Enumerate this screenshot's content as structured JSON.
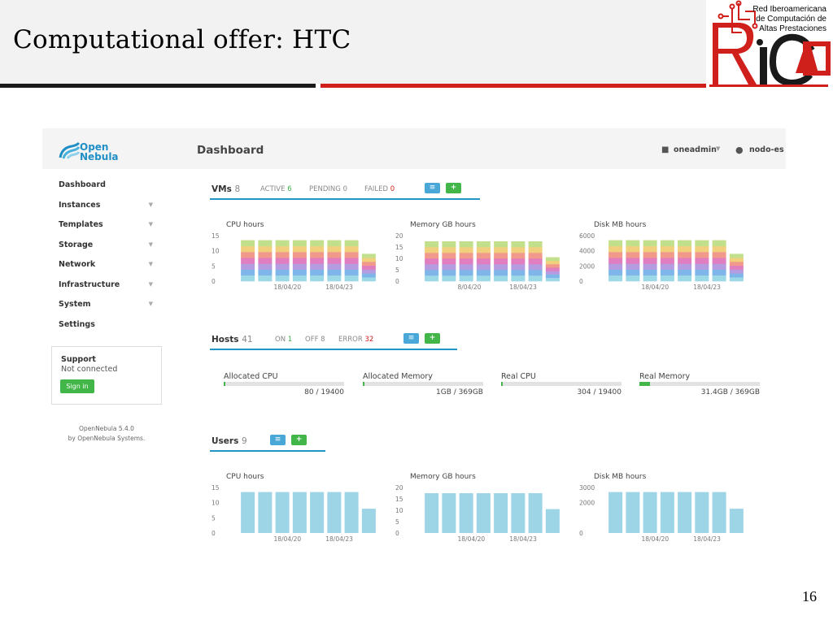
{
  "slide": {
    "title": "Computational offer: HTC",
    "page_number": "16",
    "logo": {
      "org_line1": "Red Iberoamericana",
      "org_line2": "de Computación de",
      "org_line3": "Altas Prestaciones",
      "wordmark": "RICAP"
    }
  },
  "colors": {
    "accent_blue": "#2196c6",
    "success_green": "#43b649",
    "error_red": "#d0201c",
    "stack": [
      "#9dd8e6",
      "#7fb6e9",
      "#b59be0",
      "#e07ebf",
      "#f19a8c",
      "#f0d07c",
      "#c2e08c"
    ]
  },
  "app": {
    "brand": {
      "line1": "Open",
      "line2": "Nebula"
    },
    "sidebar": {
      "items": [
        {
          "label": "Dashboard",
          "caret": false
        },
        {
          "label": "Instances",
          "caret": true
        },
        {
          "label": "Templates",
          "caret": true
        },
        {
          "label": "Storage",
          "caret": true
        },
        {
          "label": "Network",
          "caret": true
        },
        {
          "label": "Infrastructure",
          "caret": true
        },
        {
          "label": "System",
          "caret": true
        },
        {
          "label": "Settings",
          "caret": false
        }
      ],
      "support": {
        "title": "Support",
        "status": "Not connected",
        "button": "Sign in"
      },
      "version_line1": "OpenNebula 5.4.0",
      "version_line2": "by OpenNebula Systems."
    },
    "topbar": {
      "title": "Dashboard",
      "user": "oneadmin",
      "zone": "nodo-es"
    },
    "vms": {
      "title": "VMs",
      "count": "8",
      "active_label": "ACTIVE",
      "active": "6",
      "pending_label": "PENDING",
      "pending": "0",
      "failed_label": "FAILED",
      "failed": "0"
    },
    "hosts": {
      "title": "Hosts",
      "count": "41",
      "on_label": "ON",
      "on": "1",
      "off_label": "OFF",
      "off": "8",
      "error_label": "ERROR",
      "error": "32",
      "gauges": [
        {
          "label": "Allocated CPU",
          "value": "80 / 19400",
          "fraction": 0.004
        },
        {
          "label": "Allocated Memory",
          "value": "1GB / 369GB",
          "fraction": 0.003
        },
        {
          "label": "Real CPU",
          "value": "304 / 19400",
          "fraction": 0.016
        },
        {
          "label": "Real Memory",
          "value": "31.4GB / 369GB",
          "fraction": 0.085
        }
      ]
    },
    "users": {
      "title": "Users",
      "count": "9"
    },
    "icons": {
      "list_button": "list-icon",
      "add_button": "plus-icon",
      "user": "user-icon",
      "zone": "globe-icon"
    }
  },
  "chart_data": [
    {
      "type": "bar",
      "stacked": true,
      "section": "VMs",
      "title": "CPU hours",
      "yticks": [
        "15",
        "10",
        "5",
        "0"
      ],
      "ylim": [
        0,
        15
      ],
      "xticks": [
        "18/04/20",
        "18/04/23"
      ],
      "values": [
        13.5,
        13.5,
        13.5,
        13.5,
        13.5,
        13.5,
        13.5,
        9
      ]
    },
    {
      "type": "bar",
      "stacked": true,
      "section": "VMs",
      "title": "Memory GB hours",
      "yticks": [
        "20",
        "15",
        "10",
        "5",
        "0"
      ],
      "ylim": [
        0,
        20
      ],
      "xticks": [
        "8/04/20",
        "18/04/23"
      ],
      "values": [
        17.5,
        17.5,
        17.5,
        17.5,
        17.5,
        17.5,
        17.5,
        10.5
      ]
    },
    {
      "type": "bar",
      "stacked": true,
      "section": "VMs",
      "title": "Disk MB hours",
      "yticks": [
        "6000",
        "4000",
        "2000",
        "0"
      ],
      "ylim": [
        0,
        6000
      ],
      "xticks": [
        "18/04/20",
        "18/04/23"
      ],
      "values": [
        5400,
        5400,
        5400,
        5400,
        5400,
        5400,
        5400,
        3600
      ]
    },
    {
      "type": "bar",
      "section": "Users",
      "title": "CPU hours",
      "yticks": [
        "15",
        "10",
        "5",
        "0"
      ],
      "ylim": [
        0,
        15
      ],
      "xticks": [
        "18/04/20",
        "18/04/23"
      ],
      "values": [
        13.5,
        13.5,
        13.5,
        13.5,
        13.5,
        13.5,
        13.5,
        8
      ]
    },
    {
      "type": "bar",
      "section": "Users",
      "title": "Memory GB hours",
      "yticks": [
        "20",
        "15",
        "10",
        "5",
        "0"
      ],
      "ylim": [
        0,
        20
      ],
      "xticks": [
        "18/04/20",
        "18/04/23"
      ],
      "values": [
        17.5,
        17.5,
        17.5,
        17.5,
        17.5,
        17.5,
        17.5,
        10.5
      ]
    },
    {
      "type": "bar",
      "section": "Users",
      "title": "Disk MB hours",
      "yticks": [
        "3000",
        "2000",
        "0"
      ],
      "ylim": [
        0,
        3000
      ],
      "xticks": [
        "18/04/20",
        "18/04/23"
      ],
      "values": [
        2700,
        2700,
        2700,
        2700,
        2700,
        2700,
        2700,
        1600
      ]
    }
  ]
}
